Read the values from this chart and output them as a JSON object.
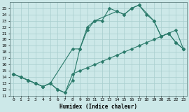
{
  "title": "",
  "xlabel": "Humidex (Indice chaleur)",
  "ylabel": "",
  "bg_color": "#cce8e8",
  "line_color": "#2a7a6a",
  "grid_color": "#a8cece",
  "xlim": [
    -0.5,
    23.5
  ],
  "ylim": [
    11,
    26
  ],
  "xticks": [
    0,
    1,
    2,
    3,
    4,
    5,
    6,
    7,
    8,
    9,
    10,
    11,
    12,
    13,
    14,
    15,
    16,
    17,
    18,
    19,
    20,
    21,
    22,
    23
  ],
  "yticks": [
    11,
    12,
    13,
    14,
    15,
    16,
    17,
    18,
    19,
    20,
    21,
    22,
    23,
    24,
    25
  ],
  "line1_x": [
    0,
    1,
    2,
    3,
    4,
    5,
    6,
    7,
    8,
    9,
    10,
    11,
    12,
    13,
    14,
    15,
    16,
    17,
    18,
    19,
    20,
    21,
    22,
    23
  ],
  "line1_y": [
    14.5,
    14.0,
    13.5,
    13.0,
    12.5,
    13.0,
    12.0,
    11.5,
    13.5,
    18.5,
    21.5,
    23.0,
    23.0,
    25.0,
    24.5,
    24.0,
    25.0,
    25.5,
    24.0,
    23.0,
    20.5,
    21.0,
    19.5,
    18.5
  ],
  "line2_x": [
    0,
    1,
    2,
    3,
    4,
    5,
    6,
    7,
    8,
    9,
    10,
    11,
    12,
    13,
    14,
    15,
    16,
    17,
    18,
    19,
    20,
    21,
    22,
    23
  ],
  "line2_y": [
    14.5,
    14.0,
    13.5,
    13.0,
    12.5,
    13.0,
    12.0,
    11.5,
    14.5,
    15.0,
    15.5,
    16.0,
    16.5,
    17.0,
    17.5,
    18.0,
    18.5,
    19.0,
    19.5,
    20.0,
    20.5,
    21.0,
    21.5,
    18.5
  ],
  "line3_x": [
    0,
    1,
    2,
    3,
    4,
    5,
    8,
    9,
    10,
    11,
    14,
    15,
    16,
    17,
    19,
    20,
    21,
    22,
    23
  ],
  "line3_y": [
    14.5,
    14.0,
    13.5,
    13.0,
    12.5,
    13.0,
    18.5,
    18.5,
    22.0,
    23.0,
    24.5,
    24.0,
    25.0,
    25.5,
    23.0,
    20.5,
    21.0,
    19.5,
    18.5
  ]
}
